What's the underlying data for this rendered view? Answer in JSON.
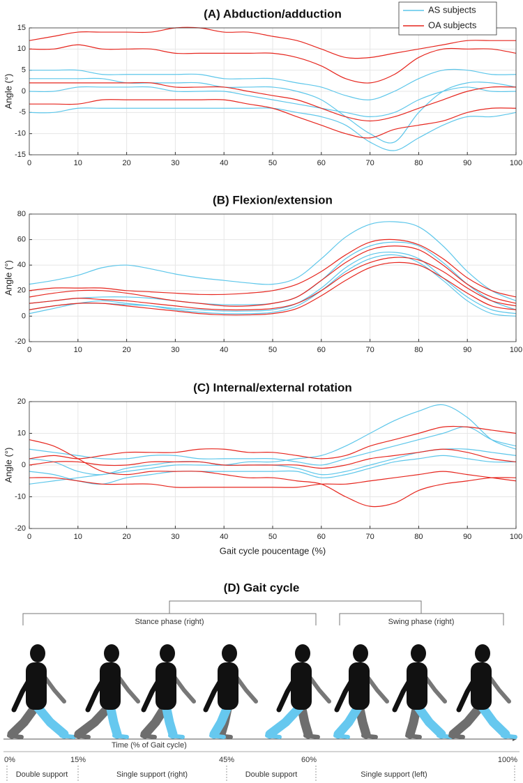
{
  "chart_data": [
    {
      "type": "line",
      "title": "(A) Abduction/adduction",
      "ylabel": "Angle (°)",
      "legend": true,
      "grid": true,
      "x": [
        0,
        5,
        10,
        15,
        20,
        25,
        30,
        35,
        40,
        45,
        50,
        55,
        60,
        65,
        70,
        75,
        80,
        85,
        90,
        95,
        100
      ],
      "xlim": [
        0,
        100
      ],
      "xticks": [
        0,
        10,
        20,
        30,
        40,
        50,
        60,
        70,
        80,
        90,
        100
      ],
      "ylim": [
        -15,
        15
      ],
      "yticks": [
        -15,
        -10,
        -5,
        0,
        5,
        10,
        15
      ],
      "series": [
        {
          "name": "AS subjects",
          "color": "#5cc6ea",
          "values": [
            3,
            3,
            3,
            3,
            2,
            2,
            2,
            2,
            1,
            1,
            1,
            0,
            -2,
            -6,
            -10,
            -12,
            -5,
            0,
            2,
            2,
            1
          ]
        },
        {
          "name": "AS subjects",
          "color": "#5cc6ea",
          "values": [
            0,
            0,
            1,
            1,
            1,
            1,
            0,
            0,
            0,
            -1,
            -2,
            -3,
            -4,
            -5,
            -6,
            -5,
            -2,
            0,
            1,
            0,
            0
          ]
        },
        {
          "name": "AS subjects",
          "color": "#5cc6ea",
          "values": [
            -5,
            -5,
            -4,
            -4,
            -4,
            -4,
            -4,
            -4,
            -4,
            -4,
            -4,
            -5,
            -6,
            -8,
            -12,
            -14,
            -11,
            -8,
            -6,
            -6,
            -5
          ]
        },
        {
          "name": "AS subjects",
          "color": "#5cc6ea",
          "values": [
            5,
            5,
            5,
            4,
            4,
            4,
            4,
            4,
            3,
            3,
            3,
            2,
            1,
            -1,
            -2,
            0,
            3,
            5,
            5,
            4,
            4
          ]
        },
        {
          "name": "OA subjects",
          "color": "#e6251d",
          "values": [
            12,
            13,
            14,
            14,
            14,
            14,
            15,
            15,
            14,
            14,
            13,
            12,
            10,
            8,
            8,
            9,
            10,
            11,
            12,
            12,
            12
          ]
        },
        {
          "name": "OA subjects",
          "color": "#e6251d",
          "values": [
            10,
            10,
            11,
            10,
            10,
            10,
            9,
            9,
            9,
            9,
            9,
            8,
            6,
            3,
            2,
            4,
            8,
            10,
            10,
            10,
            9
          ]
        },
        {
          "name": "OA subjects",
          "color": "#e6251d",
          "values": [
            2,
            2,
            2,
            2,
            2,
            2,
            1,
            1,
            1,
            0,
            -1,
            -2,
            -4,
            -6,
            -7,
            -6,
            -4,
            -2,
            0,
            1,
            1
          ]
        },
        {
          "name": "OA subjects",
          "color": "#e6251d",
          "values": [
            -3,
            -3,
            -3,
            -2,
            -2,
            -2,
            -2,
            -2,
            -2,
            -3,
            -4,
            -6,
            -8,
            -10,
            -11,
            -9,
            -8,
            -7,
            -5,
            -4,
            -4
          ]
        }
      ]
    },
    {
      "type": "line",
      "title": "(B) Flexion/extension",
      "ylabel": "Angle (°)",
      "legend": false,
      "grid": true,
      "x": [
        0,
        5,
        10,
        15,
        20,
        25,
        30,
        35,
        40,
        45,
        50,
        55,
        60,
        65,
        70,
        75,
        80,
        85,
        90,
        95,
        100
      ],
      "xlim": [
        0,
        100
      ],
      "xticks": [
        0,
        10,
        20,
        30,
        40,
        50,
        60,
        70,
        80,
        90,
        100
      ],
      "ylim": [
        -20,
        80
      ],
      "yticks": [
        -20,
        0,
        20,
        40,
        60,
        80
      ],
      "series": [
        {
          "name": "AS subjects",
          "color": "#5cc6ea",
          "values": [
            25,
            28,
            32,
            38,
            40,
            37,
            33,
            30,
            28,
            26,
            25,
            30,
            45,
            62,
            72,
            74,
            70,
            55,
            35,
            20,
            12
          ]
        },
        {
          "name": "AS subjects",
          "color": "#5cc6ea",
          "values": [
            5,
            8,
            10,
            10,
            9,
            8,
            6,
            5,
            4,
            4,
            5,
            10,
            22,
            38,
            48,
            50,
            45,
            30,
            15,
            5,
            2
          ]
        },
        {
          "name": "AS subjects",
          "color": "#5cc6ea",
          "values": [
            2,
            6,
            10,
            12,
            10,
            8,
            5,
            3,
            2,
            2,
            3,
            8,
            20,
            35,
            45,
            48,
            42,
            28,
            12,
            2,
            0
          ]
        },
        {
          "name": "AS subjects",
          "color": "#5cc6ea",
          "values": [
            10,
            12,
            14,
            15,
            15,
            14,
            12,
            10,
            9,
            9,
            10,
            15,
            28,
            45,
            55,
            58,
            55,
            42,
            25,
            12,
            5
          ]
        },
        {
          "name": "OA subjects",
          "color": "#e6251d",
          "values": [
            15,
            18,
            20,
            20,
            18,
            15,
            12,
            10,
            8,
            8,
            10,
            15,
            28,
            42,
            52,
            55,
            52,
            40,
            25,
            15,
            10
          ]
        },
        {
          "name": "OA subjects",
          "color": "#e6251d",
          "values": [
            10,
            12,
            14,
            13,
            12,
            10,
            8,
            6,
            5,
            5,
            6,
            10,
            20,
            33,
            42,
            46,
            44,
            35,
            22,
            12,
            8
          ]
        },
        {
          "name": "OA subjects",
          "color": "#e6251d",
          "values": [
            20,
            22,
            22,
            22,
            20,
            19,
            18,
            17,
            17,
            18,
            20,
            25,
            35,
            48,
            58,
            60,
            56,
            45,
            30,
            20,
            15
          ]
        },
        {
          "name": "OA subjects",
          "color": "#e6251d",
          "values": [
            5,
            8,
            10,
            10,
            8,
            6,
            4,
            2,
            1,
            1,
            2,
            6,
            16,
            28,
            38,
            42,
            40,
            30,
            18,
            8,
            5
          ]
        }
      ]
    },
    {
      "type": "line",
      "title": "(C) Internal/external rotation",
      "ylabel": "Angle (°)",
      "xlabel": "Gait cycle poucentage (%)",
      "legend": false,
      "grid": true,
      "x": [
        0,
        5,
        10,
        15,
        20,
        25,
        30,
        35,
        40,
        45,
        50,
        55,
        60,
        65,
        70,
        75,
        80,
        85,
        90,
        95,
        100
      ],
      "xlim": [
        0,
        100
      ],
      "xticks": [
        0,
        10,
        20,
        30,
        40,
        50,
        60,
        70,
        80,
        90,
        100
      ],
      "ylim": [
        -20,
        20
      ],
      "yticks": [
        -20,
        -10,
        0,
        10,
        20
      ],
      "series": [
        {
          "name": "AS subjects",
          "color": "#5cc6ea",
          "values": [
            -6,
            -5,
            -4,
            -3,
            -2,
            -1,
            0,
            0,
            0,
            1,
            1,
            2,
            3,
            6,
            10,
            14,
            17,
            19,
            15,
            8,
            5
          ]
        },
        {
          "name": "AS subjects",
          "color": "#5cc6ea",
          "values": [
            2,
            1,
            -2,
            -3,
            -1,
            0,
            1,
            1,
            0,
            0,
            0,
            -1,
            -3,
            -2,
            0,
            2,
            4,
            5,
            5,
            4,
            3
          ]
        },
        {
          "name": "AS subjects",
          "color": "#5cc6ea",
          "values": [
            -2,
            -3,
            -5,
            -6,
            -4,
            -3,
            -2,
            -2,
            -2,
            -2,
            -2,
            -2,
            -4,
            -3,
            -1,
            1,
            2,
            3,
            2,
            1,
            1
          ]
        },
        {
          "name": "AS subjects",
          "color": "#5cc6ea",
          "values": [
            5,
            4,
            3,
            2,
            2,
            3,
            3,
            2,
            2,
            2,
            2,
            1,
            0,
            2,
            4,
            6,
            8,
            10,
            12,
            8,
            6
          ]
        },
        {
          "name": "OA subjects",
          "color": "#e6251d",
          "values": [
            8,
            6,
            2,
            -2,
            -3,
            -2,
            -2,
            -2,
            -3,
            -4,
            -4,
            -5,
            -6,
            -10,
            -13,
            -12,
            -8,
            -6,
            -5,
            -4,
            -4
          ]
        },
        {
          "name": "OA subjects",
          "color": "#e6251d",
          "values": [
            2,
            3,
            2,
            3,
            4,
            4,
            4,
            5,
            5,
            4,
            4,
            3,
            2,
            3,
            6,
            8,
            10,
            12,
            12,
            11,
            10
          ]
        },
        {
          "name": "OA subjects",
          "color": "#e6251d",
          "values": [
            -4,
            -4,
            -5,
            -6,
            -6,
            -6,
            -7,
            -7,
            -7,
            -7,
            -7,
            -7,
            -6,
            -6,
            -5,
            -4,
            -3,
            -2,
            -3,
            -4,
            -5
          ]
        },
        {
          "name": "OA subjects",
          "color": "#e6251d",
          "values": [
            0,
            1,
            1,
            0,
            0,
            1,
            1,
            1,
            0,
            0,
            0,
            0,
            -1,
            0,
            2,
            3,
            4,
            5,
            4,
            2,
            1
          ]
        }
      ]
    }
  ],
  "gait_cycle": {
    "title": "(D) Gait cycle",
    "stance": "Stance phase (right)",
    "swing": "Swing  phase (right)",
    "time_label": "Time (% of Gait cycle)",
    "percents": [
      "0%",
      "15%",
      "45%",
      "60%",
      "100%"
    ],
    "supports": [
      "Double support",
      "Single support (right)",
      "Double support",
      "Single support (left)"
    ]
  }
}
